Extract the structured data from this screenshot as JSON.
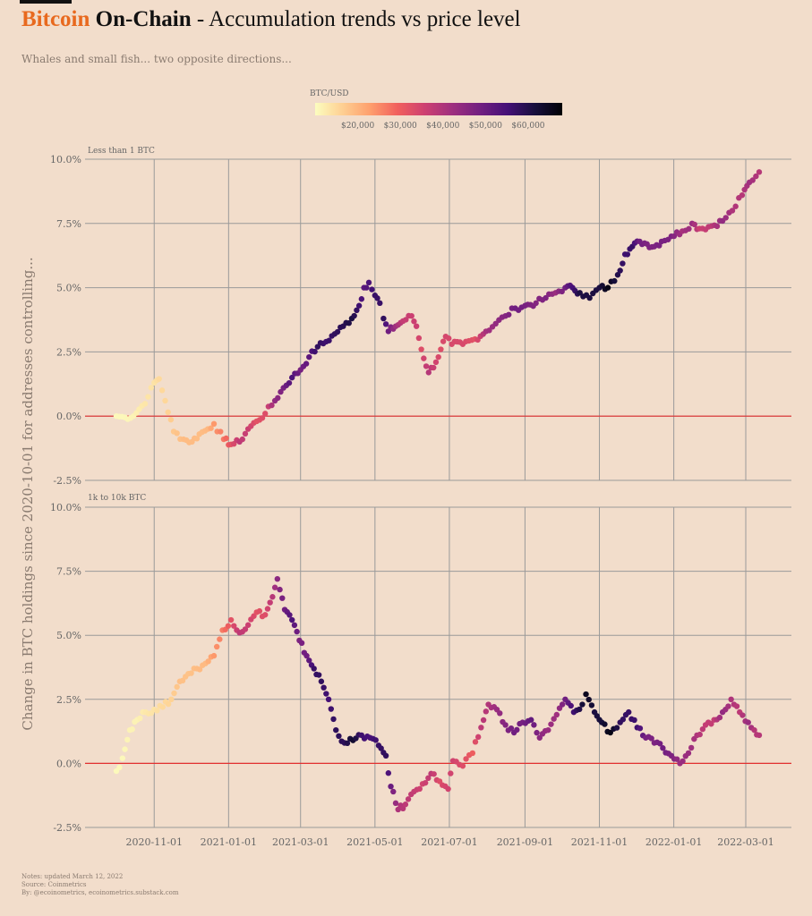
{
  "header": {
    "title_brand": "Bitcoin",
    "title_bold": "On-Chain",
    "title_rest": "- Accumulation trends vs price level",
    "subtitle": "Whales and small fish... two opposite directions..."
  },
  "notes": {
    "line1": "Notes: updated March 12, 2022",
    "line2": "Source: Coinmetrics",
    "line3": "By: @ecoinometrics, ecoinometrics.substack.com"
  },
  "colors": {
    "background": "#f2ddcb",
    "brand": "#e8691e",
    "zero_line": "#e33030",
    "grid": "#9a9a9a"
  },
  "chart_data": {
    "type": "scatter",
    "ylabel": "Change in BTC holdings since 2020-10-01 for addresses controlling...",
    "x_ticks": [
      "2020-11-01",
      "2021-01-01",
      "2021-03-01",
      "2021-05-01",
      "2021-07-01",
      "2021-09-01",
      "2021-11-01",
      "2022-01-01",
      "2022-03-01"
    ],
    "x_domain": [
      "2020-10-01",
      "2022-03-12"
    ],
    "y_ticks": [
      "-2.5%",
      "0.0%",
      "2.5%",
      "5.0%",
      "7.5%",
      "10.0%"
    ],
    "ylim": [
      -2.5,
      10
    ],
    "color_legend": {
      "title": "BTC/USD",
      "ticks": [
        "$20,000",
        "$30,000",
        "$40,000",
        "$50,000",
        "$60,000"
      ],
      "range": [
        10000,
        68000
      ],
      "palette": [
        "#fcfdbf",
        "#fecf92",
        "#fe9f6d",
        "#f1605d",
        "#cd4071",
        "#9e2f7f",
        "#721f81",
        "#451077",
        "#180f3d",
        "#000004"
      ]
    },
    "panels": [
      {
        "name": "Less than 1 BTC",
        "series": [
          {
            "date": "2020-10-01",
            "value": 0.0,
            "price": 10600
          },
          {
            "date": "2020-10-08",
            "value": -0.05,
            "price": 10800
          },
          {
            "date": "2020-10-15",
            "value": 0.0,
            "price": 11400
          },
          {
            "date": "2020-10-22",
            "value": 0.4,
            "price": 12900
          },
          {
            "date": "2020-10-27",
            "value": 0.75,
            "price": 13500
          },
          {
            "date": "2020-11-01",
            "value": 1.3,
            "price": 13700
          },
          {
            "date": "2020-11-05",
            "value": 1.45,
            "price": 15000
          },
          {
            "date": "2020-11-10",
            "value": 0.6,
            "price": 15300
          },
          {
            "date": "2020-11-17",
            "value": -0.6,
            "price": 17500
          },
          {
            "date": "2020-11-25",
            "value": -0.9,
            "price": 19000
          },
          {
            "date": "2020-12-02",
            "value": -1.0,
            "price": 19000
          },
          {
            "date": "2020-12-08",
            "value": -0.7,
            "price": 18800
          },
          {
            "date": "2020-12-15",
            "value": -0.5,
            "price": 19500
          },
          {
            "date": "2020-12-20",
            "value": -0.3,
            "price": 23500
          },
          {
            "date": "2020-12-28",
            "value": -0.9,
            "price": 27000
          },
          {
            "date": "2021-01-03",
            "value": -1.1,
            "price": 32000
          },
          {
            "date": "2021-01-10",
            "value": -1.0,
            "price": 38000
          },
          {
            "date": "2021-01-17",
            "value": -0.5,
            "price": 36000
          },
          {
            "date": "2021-01-24",
            "value": -0.2,
            "price": 32000
          },
          {
            "date": "2021-01-31",
            "value": 0.1,
            "price": 33000
          },
          {
            "date": "2021-02-08",
            "value": 0.6,
            "price": 44000
          },
          {
            "date": "2021-02-15",
            "value": 1.1,
            "price": 48000
          },
          {
            "date": "2021-02-22",
            "value": 1.5,
            "price": 54000
          },
          {
            "date": "2021-03-01",
            "value": 1.8,
            "price": 48000
          },
          {
            "date": "2021-03-08",
            "value": 2.3,
            "price": 52000
          },
          {
            "date": "2021-03-15",
            "value": 2.7,
            "price": 58000
          },
          {
            "date": "2021-03-22",
            "value": 2.9,
            "price": 56000
          },
          {
            "date": "2021-03-29",
            "value": 3.2,
            "price": 58000
          },
          {
            "date": "2021-04-05",
            "value": 3.5,
            "price": 59000
          },
          {
            "date": "2021-04-12",
            "value": 3.8,
            "price": 61000
          },
          {
            "date": "2021-04-18",
            "value": 4.3,
            "price": 56000
          },
          {
            "date": "2021-04-22",
            "value": 5.0,
            "price": 52000
          },
          {
            "date": "2021-04-26",
            "value": 5.2,
            "price": 54000
          },
          {
            "date": "2021-05-01",
            "value": 4.7,
            "price": 57000
          },
          {
            "date": "2021-05-05",
            "value": 4.4,
            "price": 57000
          },
          {
            "date": "2021-05-08",
            "value": 3.8,
            "price": 58000
          },
          {
            "date": "2021-05-12",
            "value": 3.3,
            "price": 49000
          },
          {
            "date": "2021-05-18",
            "value": 3.5,
            "price": 42000
          },
          {
            "date": "2021-05-24",
            "value": 3.7,
            "price": 37000
          },
          {
            "date": "2021-05-31",
            "value": 3.9,
            "price": 36000
          },
          {
            "date": "2021-06-04",
            "value": 3.5,
            "price": 36000
          },
          {
            "date": "2021-06-08",
            "value": 2.6,
            "price": 33000
          },
          {
            "date": "2021-06-14",
            "value": 1.7,
            "price": 39000
          },
          {
            "date": "2021-06-20",
            "value": 2.1,
            "price": 35000
          },
          {
            "date": "2021-06-24",
            "value": 2.6,
            "price": 33000
          },
          {
            "date": "2021-06-28",
            "value": 3.1,
            "price": 34500
          },
          {
            "date": "2021-07-03",
            "value": 2.8,
            "price": 34000
          },
          {
            "date": "2021-07-12",
            "value": 2.8,
            "price": 34000
          },
          {
            "date": "2021-07-22",
            "value": 3.0,
            "price": 32000
          },
          {
            "date": "2021-07-31",
            "value": 3.3,
            "price": 41000
          },
          {
            "date": "2021-08-08",
            "value": 3.6,
            "price": 44000
          },
          {
            "date": "2021-08-16",
            "value": 3.9,
            "price": 46000
          },
          {
            "date": "2021-08-24",
            "value": 4.2,
            "price": 49000
          },
          {
            "date": "2021-09-01",
            "value": 4.3,
            "price": 48000
          },
          {
            "date": "2021-09-10",
            "value": 4.4,
            "price": 46000
          },
          {
            "date": "2021-09-18",
            "value": 4.6,
            "price": 47000
          },
          {
            "date": "2021-09-26",
            "value": 4.8,
            "price": 43000
          },
          {
            "date": "2021-10-04",
            "value": 5.0,
            "price": 49000
          },
          {
            "date": "2021-10-10",
            "value": 5.0,
            "price": 55000
          },
          {
            "date": "2021-10-16",
            "value": 4.8,
            "price": 61000
          },
          {
            "date": "2021-10-24",
            "value": 4.6,
            "price": 61000
          },
          {
            "date": "2021-11-01",
            "value": 5.0,
            "price": 61000
          },
          {
            "date": "2021-11-08",
            "value": 5.0,
            "price": 66000
          },
          {
            "date": "2021-11-16",
            "value": 5.5,
            "price": 60000
          },
          {
            "date": "2021-11-22",
            "value": 6.3,
            "price": 56000
          },
          {
            "date": "2021-11-28",
            "value": 6.6,
            "price": 57000
          },
          {
            "date": "2021-12-04",
            "value": 6.8,
            "price": 49000
          },
          {
            "date": "2021-12-10",
            "value": 6.7,
            "price": 47000
          },
          {
            "date": "2021-12-16",
            "value": 6.6,
            "price": 47000
          },
          {
            "date": "2021-12-22",
            "value": 6.8,
            "price": 48000
          },
          {
            "date": "2021-12-30",
            "value": 7.0,
            "price": 47000
          },
          {
            "date": "2022-01-08",
            "value": 7.2,
            "price": 41000
          },
          {
            "date": "2022-01-16",
            "value": 7.5,
            "price": 43000
          },
          {
            "date": "2022-01-22",
            "value": 7.3,
            "price": 36000
          },
          {
            "date": "2022-02-01",
            "value": 7.4,
            "price": 38000
          },
          {
            "date": "2022-02-10",
            "value": 7.6,
            "price": 44000
          },
          {
            "date": "2022-02-18",
            "value": 8.0,
            "price": 40000
          },
          {
            "date": "2022-02-26",
            "value": 8.6,
            "price": 39000
          },
          {
            "date": "2022-03-04",
            "value": 9.1,
            "price": 42000
          },
          {
            "date": "2022-03-12",
            "value": 9.5,
            "price": 39000
          }
        ]
      },
      {
        "name": "1k to 10k BTC",
        "series": [
          {
            "date": "2020-10-01",
            "value": -0.3,
            "price": 10600
          },
          {
            "date": "2020-10-06",
            "value": 0.2,
            "price": 10700
          },
          {
            "date": "2020-10-12",
            "value": 1.3,
            "price": 11500
          },
          {
            "date": "2020-10-18",
            "value": 1.7,
            "price": 11500
          },
          {
            "date": "2020-10-25",
            "value": 2.0,
            "price": 13000
          },
          {
            "date": "2020-11-01",
            "value": 2.1,
            "price": 13700
          },
          {
            "date": "2020-11-08",
            "value": 2.2,
            "price": 15000
          },
          {
            "date": "2020-11-15",
            "value": 2.5,
            "price": 16000
          },
          {
            "date": "2020-11-22",
            "value": 3.2,
            "price": 18500
          },
          {
            "date": "2020-11-29",
            "value": 3.5,
            "price": 18000
          },
          {
            "date": "2020-12-06",
            "value": 3.7,
            "price": 19000
          },
          {
            "date": "2020-12-13",
            "value": 3.9,
            "price": 19200
          },
          {
            "date": "2020-12-20",
            "value": 4.2,
            "price": 23500
          },
          {
            "date": "2020-12-27",
            "value": 5.2,
            "price": 26500
          },
          {
            "date": "2021-01-03",
            "value": 5.6,
            "price": 32000
          },
          {
            "date": "2021-01-10",
            "value": 5.1,
            "price": 38000
          },
          {
            "date": "2021-01-17",
            "value": 5.4,
            "price": 36000
          },
          {
            "date": "2021-01-24",
            "value": 5.9,
            "price": 32000
          },
          {
            "date": "2021-01-31",
            "value": 5.8,
            "price": 33000
          },
          {
            "date": "2021-02-06",
            "value": 6.5,
            "price": 39000
          },
          {
            "date": "2021-02-10",
            "value": 7.2,
            "price": 45000
          },
          {
            "date": "2021-02-16",
            "value": 6.0,
            "price": 49000
          },
          {
            "date": "2021-02-22",
            "value": 5.6,
            "price": 54000
          },
          {
            "date": "2021-02-28",
            "value": 4.8,
            "price": 47000
          },
          {
            "date": "2021-03-06",
            "value": 4.2,
            "price": 49000
          },
          {
            "date": "2021-03-12",
            "value": 3.7,
            "price": 57000
          },
          {
            "date": "2021-03-18",
            "value": 3.2,
            "price": 58000
          },
          {
            "date": "2021-03-24",
            "value": 2.5,
            "price": 55000
          },
          {
            "date": "2021-03-30",
            "value": 1.3,
            "price": 58500
          },
          {
            "date": "2021-04-06",
            "value": 0.8,
            "price": 58500
          },
          {
            "date": "2021-04-13",
            "value": 0.9,
            "price": 63000
          },
          {
            "date": "2021-04-20",
            "value": 1.1,
            "price": 56000
          },
          {
            "date": "2021-04-27",
            "value": 1.0,
            "price": 54500
          },
          {
            "date": "2021-05-04",
            "value": 0.7,
            "price": 57000
          },
          {
            "date": "2021-05-10",
            "value": 0.3,
            "price": 58000
          },
          {
            "date": "2021-05-14",
            "value": -0.9,
            "price": 50000
          },
          {
            "date": "2021-05-20",
            "value": -1.8,
            "price": 40000
          },
          {
            "date": "2021-05-26",
            "value": -1.6,
            "price": 38000
          },
          {
            "date": "2021-06-02",
            "value": -1.1,
            "price": 37000
          },
          {
            "date": "2021-06-09",
            "value": -0.8,
            "price": 35000
          },
          {
            "date": "2021-06-16",
            "value": -0.4,
            "price": 38000
          },
          {
            "date": "2021-06-23",
            "value": -0.7,
            "price": 33000
          },
          {
            "date": "2021-06-30",
            "value": -1.0,
            "price": 35000
          },
          {
            "date": "2021-07-04",
            "value": 0.1,
            "price": 35000
          },
          {
            "date": "2021-07-12",
            "value": -0.1,
            "price": 33000
          },
          {
            "date": "2021-07-20",
            "value": 0.4,
            "price": 30000
          },
          {
            "date": "2021-07-27",
            "value": 1.4,
            "price": 38000
          },
          {
            "date": "2021-08-02",
            "value": 2.3,
            "price": 39500
          },
          {
            "date": "2021-08-09",
            "value": 2.1,
            "price": 43000
          },
          {
            "date": "2021-08-16",
            "value": 1.5,
            "price": 46000
          },
          {
            "date": "2021-08-23",
            "value": 1.2,
            "price": 49000
          },
          {
            "date": "2021-08-30",
            "value": 1.6,
            "price": 48000
          },
          {
            "date": "2021-09-06",
            "value": 1.7,
            "price": 51000
          },
          {
            "date": "2021-09-13",
            "value": 1.0,
            "price": 45000
          },
          {
            "date": "2021-09-20",
            "value": 1.3,
            "price": 43000
          },
          {
            "date": "2021-09-27",
            "value": 1.9,
            "price": 42000
          },
          {
            "date": "2021-10-04",
            "value": 2.5,
            "price": 49000
          },
          {
            "date": "2021-10-11",
            "value": 2.0,
            "price": 56000
          },
          {
            "date": "2021-10-18",
            "value": 2.3,
            "price": 62000
          },
          {
            "date": "2021-10-21",
            "value": 2.7,
            "price": 65000
          },
          {
            "date": "2021-10-28",
            "value": 2.0,
            "price": 61000
          },
          {
            "date": "2021-11-03",
            "value": 1.6,
            "price": 62000
          },
          {
            "date": "2021-11-10",
            "value": 1.2,
            "price": 66000
          },
          {
            "date": "2021-11-18",
            "value": 1.6,
            "price": 58000
          },
          {
            "date": "2021-11-25",
            "value": 2.0,
            "price": 57000
          },
          {
            "date": "2021-12-02",
            "value": 1.4,
            "price": 56000
          },
          {
            "date": "2021-12-09",
            "value": 1.0,
            "price": 48000
          },
          {
            "date": "2021-12-16",
            "value": 0.8,
            "price": 47000
          },
          {
            "date": "2021-12-23",
            "value": 0.6,
            "price": 49000
          },
          {
            "date": "2021-12-30",
            "value": 0.3,
            "price": 47000
          },
          {
            "date": "2022-01-06",
            "value": 0.0,
            "price": 43000
          },
          {
            "date": "2022-01-13",
            "value": 0.4,
            "price": 43000
          },
          {
            "date": "2022-01-20",
            "value": 1.1,
            "price": 40000
          },
          {
            "date": "2022-01-27",
            "value": 1.5,
            "price": 37000
          },
          {
            "date": "2022-02-03",
            "value": 1.7,
            "price": 37000
          },
          {
            "date": "2022-02-10",
            "value": 2.0,
            "price": 44000
          },
          {
            "date": "2022-02-17",
            "value": 2.5,
            "price": 40000
          },
          {
            "date": "2022-02-24",
            "value": 2.0,
            "price": 38000
          },
          {
            "date": "2022-03-03",
            "value": 1.6,
            "price": 43000
          },
          {
            "date": "2022-03-08",
            "value": 1.3,
            "price": 39000
          },
          {
            "date": "2022-03-12",
            "value": 1.1,
            "price": 39000
          }
        ]
      }
    ]
  }
}
